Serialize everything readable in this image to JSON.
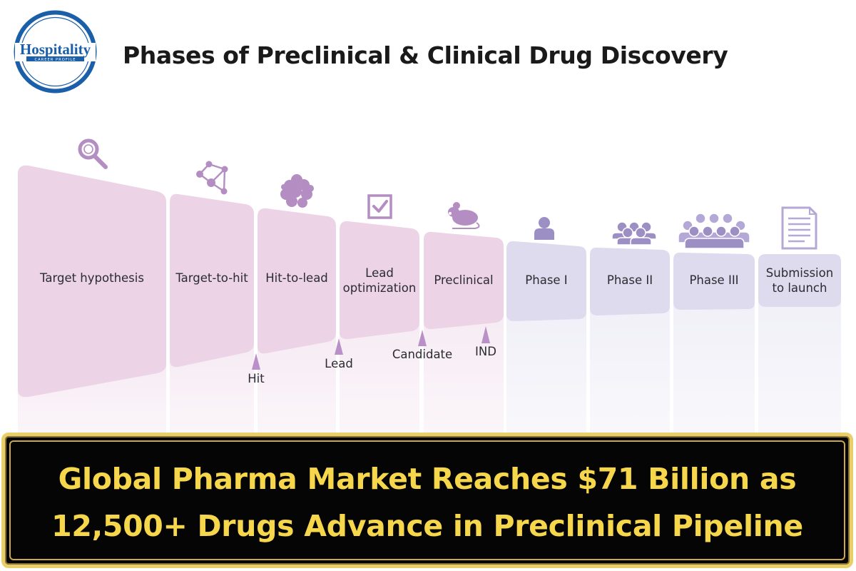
{
  "logo": {
    "text": "Hospitality",
    "subtext": "CAREER PROFILE"
  },
  "title": "Phases of Preclinical & Clinical Drug Discovery",
  "phases": [
    {
      "label": "Target hypothesis",
      "icon": "magnifier-icon"
    },
    {
      "label": "Target-to-hit",
      "icon": "network-icon"
    },
    {
      "label": "Hit-to-lead",
      "icon": "molecule-cluster-icon"
    },
    {
      "label": "Lead optimization",
      "icon": "checkbox-icon"
    },
    {
      "label": "Preclinical",
      "icon": "mouse-icon"
    },
    {
      "label": "Phase I",
      "icon": "single-person-icon"
    },
    {
      "label": "Phase II",
      "icon": "small-group-icon"
    },
    {
      "label": "Phase III",
      "icon": "large-group-icon"
    },
    {
      "label": "Submission to launch",
      "icon": "document-icon"
    }
  ],
  "milestones": [
    "Hit",
    "Lead",
    "Candidate",
    "IND"
  ],
  "colors": {
    "preclinical_fill": "#ecd3e6",
    "clinical_fill": "#dddbed",
    "icon": "#b48ec3",
    "clinical_icon": "#9c8fc4",
    "banner_bg": "#050505",
    "banner_text": "#f6d64a",
    "banner_border": "#e9cf6a"
  },
  "banner": {
    "line1": "Global Pharma Market Reaches $71 Billion as",
    "line2": "12,500+ Drugs Advance in Preclinical Pipeline"
  }
}
